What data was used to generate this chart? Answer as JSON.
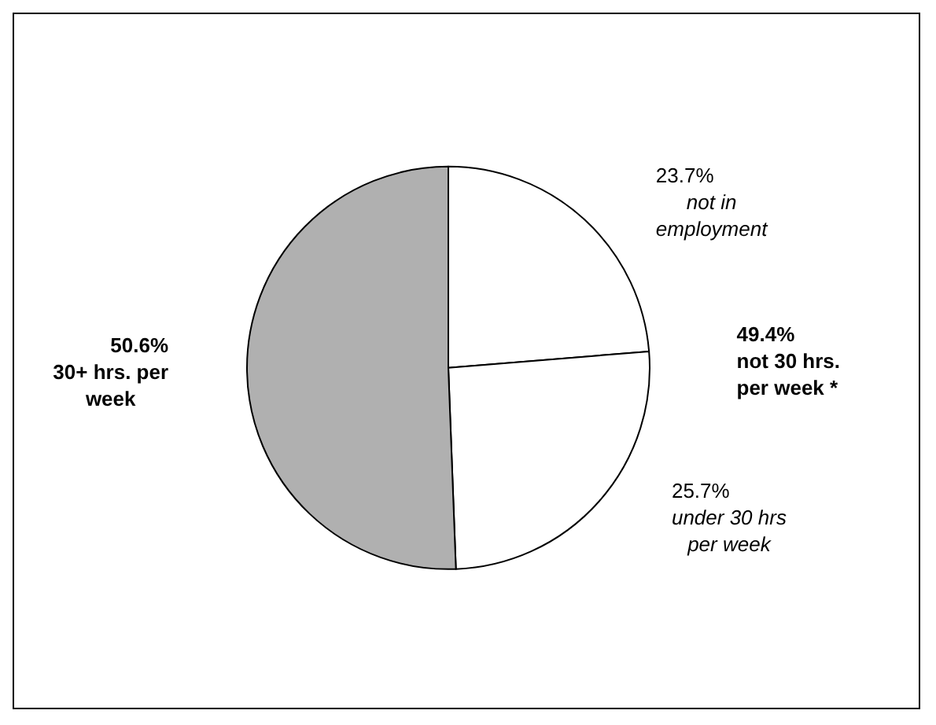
{
  "chart_data": {
    "type": "pie",
    "categories": [
      "not in employment",
      "under 30 hrs per week",
      "30+ hrs. per week"
    ],
    "values": [
      23.7,
      25.7,
      50.6
    ],
    "colors": [
      "#ffffff",
      "#ffffff",
      "#b0b0b0"
    ],
    "value_labels": [
      "23.7%",
      "25.7%",
      "50.6%"
    ],
    "legend": false,
    "annotations": [
      "49.4%\nnot 30 hrs.\nper week *"
    ]
  }
}
